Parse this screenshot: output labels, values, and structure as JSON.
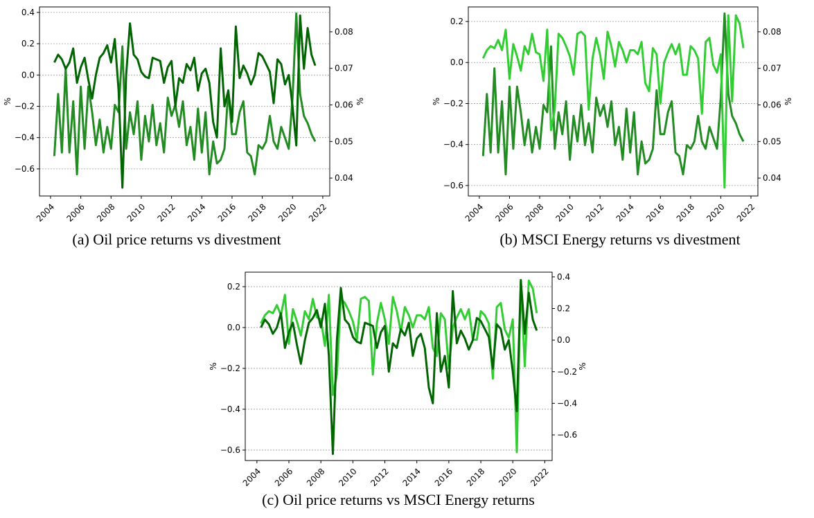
{
  "chart_data": [
    {
      "type": "line",
      "caption": "(a) Oil price returns vs divestment",
      "ylabel": "%",
      "y2label": "%",
      "grid": true,
      "x": [
        2004.25,
        2004.5,
        2004.75,
        2005,
        2005.25,
        2005.5,
        2005.75,
        2006,
        2006.25,
        2006.5,
        2006.75,
        2007,
        2007.25,
        2007.5,
        2007.75,
        2008,
        2008.25,
        2008.5,
        2008.75,
        2009,
        2009.25,
        2009.5,
        2009.75,
        2010,
        2010.25,
        2010.5,
        2010.75,
        2011,
        2011.25,
        2011.5,
        2011.75,
        2012,
        2012.25,
        2012.5,
        2012.75,
        2013,
        2013.25,
        2013.5,
        2013.75,
        2014,
        2014.25,
        2014.5,
        2014.75,
        2015,
        2015.25,
        2015.5,
        2015.75,
        2016,
        2016.25,
        2016.5,
        2016.75,
        2017,
        2017.25,
        2017.5,
        2017.75,
        2018,
        2018.25,
        2018.5,
        2018.75,
        2019,
        2019.25,
        2019.5,
        2019.75,
        2020,
        2020.25,
        2020.5,
        2020.75,
        2021,
        2021.25,
        2021.5
      ],
      "xlim": [
        2003.27,
        2022.46
      ],
      "xticks": [
        2004,
        2006,
        2008,
        2010,
        2012,
        2014,
        2016,
        2018,
        2020,
        2022
      ],
      "ylim": [
        -0.773,
        0.435
      ],
      "yticks": [
        0.4,
        0.2,
        {
          "value": 0,
          "label": "0.0"
        },
        {
          "value": -0.2,
          "label": "−0.2"
        },
        {
          "value": -0.4,
          "label": "−0.4"
        },
        {
          "value": -0.6,
          "label": "−0.6"
        }
      ],
      "y2lim": [
        0.0351,
        0.0868
      ],
      "y2ticks": [
        0.08,
        0.07,
        0.06,
        0.05,
        0.04
      ],
      "series": [
        {
          "color": "#228b22",
          "axis": "y2",
          "values": [
            0.046,
            0.063,
            0.047,
            0.07,
            0.047,
            0.061,
            0.041,
            0.065,
            0.048,
            0.065,
            0.058,
            0.049,
            0.056,
            0.047,
            0.054,
            0.048,
            0.06,
            0.058,
            0.076,
            0.048,
            0.058,
            0.052,
            0.061,
            0.045,
            0.057,
            0.05,
            0.06,
            0.049,
            0.055,
            0.047,
            0.062,
            0.057,
            0.06,
            0.054,
            0.061,
            0.049,
            0.054,
            0.045,
            0.059,
            0.047,
            0.058,
            0.041,
            0.05,
            0.044,
            0.045,
            0.048,
            0.064,
            0.052,
            0.052,
            0.058,
            0.061,
            0.047,
            0.046,
            0.041,
            0.049,
            0.048,
            0.05,
            0.057,
            0.05,
            0.048,
            0.054,
            0.051,
            0.048,
            0.062,
            0.085,
            0.063,
            0.057,
            0.055,
            0.052,
            0.05
          ]
        },
        {
          "color": "#006400",
          "values": [
            0.08,
            0.13,
            0.1,
            0.04,
            0.08,
            0.17,
            -0.05,
            0.05,
            0.11,
            -0.03,
            -0.15,
            0.0,
            0.11,
            0.14,
            0.19,
            0.08,
            0.23,
            -0.1,
            -0.72,
            0.0,
            0.33,
            0.13,
            0.1,
            0.02,
            -0.01,
            -0.02,
            0.11,
            0.1,
            0.09,
            -0.05,
            0.05,
            0.09,
            -0.2,
            -0.02,
            -0.05,
            0.07,
            0.03,
            0.11,
            -0.1,
            0.01,
            0.04,
            -0.05,
            -0.3,
            -0.4,
            0.17,
            -0.2,
            -0.1,
            -0.3,
            0.31,
            -0.02,
            0.06,
            0.01,
            -0.06,
            0.0,
            0.14,
            0.12,
            0.07,
            0.02,
            -0.18,
            0.1,
            0.07,
            -0.06,
            0.0,
            -0.2,
            -0.45,
            0.38,
            0.04,
            0.3,
            0.13,
            0.06
          ]
        }
      ]
    },
    {
      "type": "line",
      "caption": "(b) MSCI Energy returns vs divestment",
      "ylabel": "%",
      "y2label": "%",
      "grid": true,
      "x": [
        2004.25,
        2004.5,
        2004.75,
        2005,
        2005.25,
        2005.5,
        2005.75,
        2006,
        2006.25,
        2006.5,
        2006.75,
        2007,
        2007.25,
        2007.5,
        2007.75,
        2008,
        2008.25,
        2008.5,
        2008.75,
        2009,
        2009.25,
        2009.5,
        2009.75,
        2010,
        2010.25,
        2010.5,
        2010.75,
        2011,
        2011.25,
        2011.5,
        2011.75,
        2012,
        2012.25,
        2012.5,
        2012.75,
        2013,
        2013.25,
        2013.5,
        2013.75,
        2014,
        2014.25,
        2014.5,
        2014.75,
        2015,
        2015.25,
        2015.5,
        2015.75,
        2016,
        2016.25,
        2016.5,
        2016.75,
        2017,
        2017.25,
        2017.5,
        2017.75,
        2018,
        2018.25,
        2018.5,
        2018.75,
        2019,
        2019.25,
        2019.5,
        2019.75,
        2020,
        2020.25,
        2020.5,
        2020.75,
        2021,
        2021.25,
        2021.5
      ],
      "xlim": [
        2003.27,
        2022.46
      ],
      "xticks": [
        2004,
        2006,
        2008,
        2010,
        2012,
        2014,
        2016,
        2018,
        2020,
        2022
      ],
      "ylim": [
        -0.651,
        0.271
      ],
      "yticks": [
        0.2,
        {
          "value": 0,
          "label": "0.0"
        },
        {
          "value": -0.2,
          "label": "−0.2"
        },
        {
          "value": -0.4,
          "label": "−0.4"
        },
        {
          "value": -0.6,
          "label": "−0.6"
        }
      ],
      "y2lim": [
        0.0351,
        0.0868
      ],
      "y2ticks": [
        0.08,
        0.07,
        0.06,
        0.05,
        0.04
      ],
      "series": [
        {
          "color": "#228b22",
          "axis": "y2",
          "values": [
            0.046,
            0.063,
            0.047,
            0.07,
            0.047,
            0.061,
            0.041,
            0.065,
            0.048,
            0.065,
            0.058,
            0.049,
            0.056,
            0.047,
            0.054,
            0.048,
            0.06,
            0.058,
            0.076,
            0.048,
            0.058,
            0.052,
            0.061,
            0.045,
            0.057,
            0.05,
            0.06,
            0.049,
            0.055,
            0.047,
            0.062,
            0.057,
            0.06,
            0.054,
            0.061,
            0.049,
            0.054,
            0.045,
            0.059,
            0.047,
            0.058,
            0.041,
            0.05,
            0.044,
            0.045,
            0.048,
            0.064,
            0.052,
            0.052,
            0.058,
            0.061,
            0.047,
            0.046,
            0.041,
            0.049,
            0.048,
            0.05,
            0.057,
            0.05,
            0.048,
            0.054,
            0.051,
            0.048,
            0.062,
            0.085,
            0.063,
            0.057,
            0.055,
            0.052,
            0.05
          ]
        },
        {
          "color": "#32cd32",
          "values": [
            0.02,
            0.06,
            0.08,
            0.07,
            0.11,
            0.06,
            0.16,
            -0.08,
            0.09,
            0.03,
            -0.04,
            0.08,
            0.04,
            0.14,
            0.05,
            0.04,
            -0.09,
            0.16,
            -0.33,
            -0.23,
            0.14,
            0.12,
            0.08,
            0.03,
            -0.06,
            0.14,
            0.15,
            0.13,
            -0.23,
            0.02,
            0.12,
            0.04,
            -0.08,
            0.15,
            0.08,
            -0.02,
            0.1,
            0.06,
            0.0,
            0.06,
            0.06,
            0.04,
            0.1,
            -0.1,
            -0.14,
            0.07,
            0.04,
            -0.2,
            0.0,
            0.05,
            0.09,
            0.04,
            0.09,
            -0.06,
            -0.06,
            0.08,
            0.06,
            0.02,
            -0.25,
            0.1,
            0.12,
            -0.01,
            -0.05,
            0.04,
            -0.61,
            0.23,
            -0.19,
            0.23,
            0.19,
            0.07
          ]
        }
      ]
    },
    {
      "type": "line",
      "caption": "(c) Oil price returns vs MSCI Energy returns",
      "ylabel": "%",
      "y2label": "%",
      "grid": true,
      "x": [
        2004.25,
        2004.5,
        2004.75,
        2005,
        2005.25,
        2005.5,
        2005.75,
        2006,
        2006.25,
        2006.5,
        2006.75,
        2007,
        2007.25,
        2007.5,
        2007.75,
        2008,
        2008.25,
        2008.5,
        2008.75,
        2009,
        2009.25,
        2009.5,
        2009.75,
        2010,
        2010.25,
        2010.5,
        2010.75,
        2011,
        2011.25,
        2011.5,
        2011.75,
        2012,
        2012.25,
        2012.5,
        2012.75,
        2013,
        2013.25,
        2013.5,
        2013.75,
        2014,
        2014.25,
        2014.5,
        2014.75,
        2015,
        2015.25,
        2015.5,
        2015.75,
        2016,
        2016.25,
        2016.5,
        2016.75,
        2017,
        2017.25,
        2017.5,
        2017.75,
        2018,
        2018.25,
        2018.5,
        2018.75,
        2019,
        2019.25,
        2019.5,
        2019.75,
        2020,
        2020.25,
        2020.5,
        2020.75,
        2021,
        2021.25,
        2021.5
      ],
      "xlim": [
        2003.27,
        2022.46
      ],
      "xticks": [
        2004,
        2006,
        2008,
        2010,
        2012,
        2014,
        2016,
        2018,
        2020,
        2022
      ],
      "ylim": [
        -0.651,
        0.271
      ],
      "yticks": [
        0.2,
        {
          "value": 0,
          "label": "0.0"
        },
        {
          "value": -0.2,
          "label": "−0.2"
        },
        {
          "value": -0.4,
          "label": "−0.4"
        },
        {
          "value": -0.6,
          "label": "−0.6"
        }
      ],
      "y2lim": [
        -0.762,
        0.43
      ],
      "y2ticks": [
        0.4,
        0.2,
        {
          "value": 0,
          "label": "0.0"
        },
        {
          "value": -0.2,
          "label": "−0.2"
        },
        {
          "value": -0.4,
          "label": "−0.4"
        },
        {
          "value": -0.6,
          "label": "−0.6"
        }
      ],
      "series": [
        {
          "color": "#32cd32",
          "values": [
            0.02,
            0.06,
            0.08,
            0.07,
            0.11,
            0.06,
            0.16,
            -0.08,
            0.09,
            0.03,
            -0.04,
            0.08,
            0.04,
            0.14,
            0.05,
            0.04,
            -0.09,
            0.16,
            -0.33,
            -0.23,
            0.14,
            0.12,
            0.08,
            0.03,
            -0.06,
            0.14,
            0.15,
            0.13,
            -0.23,
            0.02,
            0.12,
            0.04,
            -0.08,
            0.15,
            0.08,
            -0.02,
            0.1,
            0.06,
            0.0,
            0.06,
            0.06,
            0.04,
            0.1,
            -0.1,
            -0.14,
            0.07,
            0.04,
            -0.2,
            0.0,
            0.05,
            0.09,
            0.04,
            0.09,
            -0.06,
            -0.06,
            0.08,
            0.06,
            0.02,
            -0.25,
            0.1,
            0.12,
            -0.01,
            -0.05,
            0.04,
            -0.61,
            0.23,
            -0.19,
            0.23,
            0.19,
            0.07
          ]
        },
        {
          "color": "#006400",
          "axis": "y2",
          "values": [
            0.08,
            0.13,
            0.1,
            0.04,
            0.08,
            0.17,
            -0.05,
            0.05,
            0.11,
            -0.03,
            -0.15,
            0.0,
            0.11,
            0.14,
            0.19,
            0.08,
            0.23,
            -0.1,
            -0.72,
            0.0,
            0.33,
            0.13,
            0.1,
            0.02,
            -0.01,
            -0.02,
            0.11,
            0.1,
            0.09,
            -0.05,
            0.05,
            0.09,
            -0.2,
            -0.02,
            -0.05,
            0.07,
            0.03,
            0.11,
            -0.1,
            0.01,
            0.04,
            -0.05,
            -0.3,
            -0.4,
            0.17,
            -0.2,
            -0.1,
            -0.3,
            0.31,
            -0.02,
            0.06,
            0.01,
            -0.06,
            0.0,
            0.14,
            0.12,
            0.07,
            0.02,
            -0.18,
            0.1,
            0.07,
            -0.06,
            0.0,
            -0.2,
            -0.45,
            0.38,
            0.04,
            0.3,
            0.13,
            0.06
          ]
        }
      ]
    }
  ]
}
